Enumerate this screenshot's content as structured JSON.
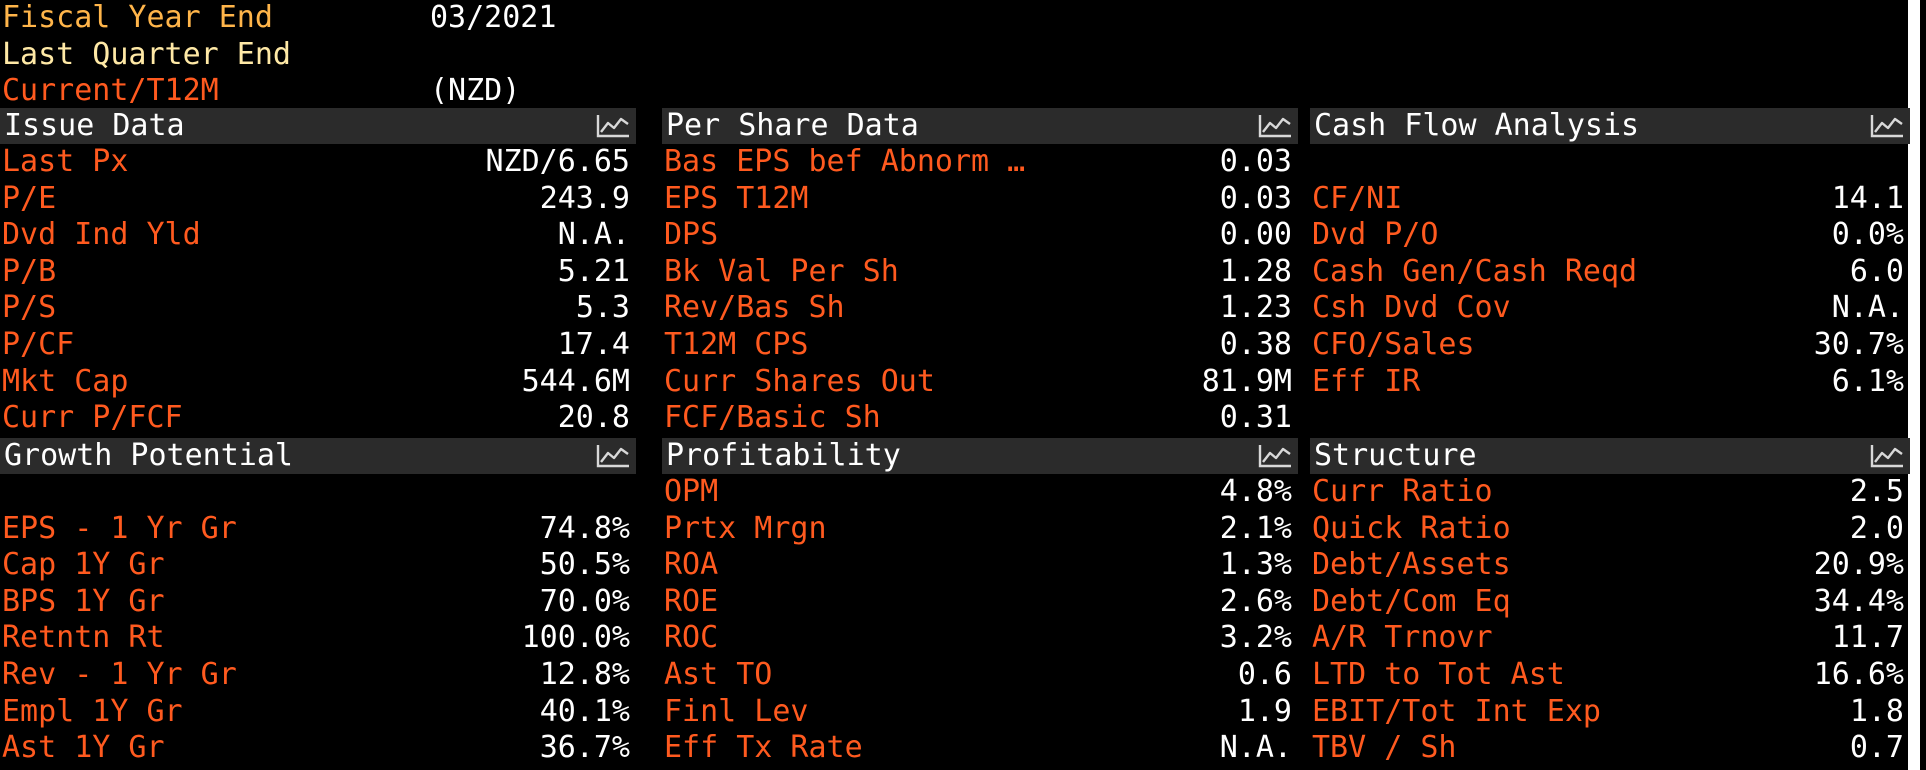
{
  "header": {
    "fiscal_year_end_label": "Fiscal Year End",
    "fiscal_year_end_value": "03/2021",
    "last_quarter_end_label": "Last Quarter End",
    "last_quarter_end_value": "",
    "current_label": "Current/T12M",
    "current_value": "(NZD)"
  },
  "panels": {
    "issue_data": {
      "title": "Issue Data",
      "rows": [
        {
          "label": "Last Px",
          "value": "NZD/6.65"
        },
        {
          "label": "P/E",
          "value": "243.9"
        },
        {
          "label": "Dvd Ind Yld",
          "value": "N.A."
        },
        {
          "label": "P/B",
          "value": "5.21"
        },
        {
          "label": "P/S",
          "value": "5.3"
        },
        {
          "label": "P/CF",
          "value": "17.4"
        },
        {
          "label": "Mkt Cap",
          "value": "544.6M"
        },
        {
          "label": "Curr P/FCF",
          "value": "20.8"
        }
      ]
    },
    "per_share_data": {
      "title": "Per Share Data",
      "rows": [
        {
          "label": "Bas EPS bef Abnorm …",
          "value": "0.03"
        },
        {
          "label": "EPS T12M",
          "value": "0.03"
        },
        {
          "label": "DPS",
          "value": "0.00"
        },
        {
          "label": "Bk Val Per Sh",
          "value": "1.28"
        },
        {
          "label": "Rev/Bas Sh",
          "value": "1.23"
        },
        {
          "label": "T12M CPS",
          "value": "0.38"
        },
        {
          "label": "Curr Shares Out",
          "value": "81.9M"
        },
        {
          "label": "FCF/Basic Sh",
          "value": "0.31"
        }
      ]
    },
    "cash_flow_analysis": {
      "title": "Cash Flow Analysis",
      "rows": [
        {
          "label": "",
          "value": ""
        },
        {
          "label": "CF/NI",
          "value": "14.1"
        },
        {
          "label": "Dvd P/O",
          "value": "0.0%"
        },
        {
          "label": "Cash Gen/Cash Reqd",
          "value": "6.0"
        },
        {
          "label": "Csh Dvd Cov",
          "value": "N.A."
        },
        {
          "label": "CFO/Sales",
          "value": "30.7%"
        },
        {
          "label": "Eff IR",
          "value": "6.1%"
        },
        {
          "label": "",
          "value": ""
        }
      ]
    },
    "growth_potential": {
      "title": "Growth Potential",
      "rows": [
        {
          "label": "",
          "value": ""
        },
        {
          "label": "EPS - 1 Yr Gr",
          "value": "74.8%"
        },
        {
          "label": "Cap 1Y Gr",
          "value": "50.5%"
        },
        {
          "label": "BPS 1Y Gr",
          "value": "70.0%"
        },
        {
          "label": "Retntn Rt",
          "value": "100.0%"
        },
        {
          "label": "Rev - 1 Yr Gr",
          "value": "12.8%"
        },
        {
          "label": "Empl 1Y Gr",
          "value": "40.1%"
        },
        {
          "label": "Ast 1Y Gr",
          "value": "36.7%"
        }
      ]
    },
    "profitability": {
      "title": "Profitability",
      "rows": [
        {
          "label": "OPM",
          "value": "4.8%"
        },
        {
          "label": "Prtx Mrgn",
          "value": "2.1%"
        },
        {
          "label": "ROA",
          "value": "1.3%"
        },
        {
          "label": "ROE",
          "value": "2.6%"
        },
        {
          "label": "ROC",
          "value": "3.2%"
        },
        {
          "label": "Ast TO",
          "value": "0.6"
        },
        {
          "label": "Finl Lev",
          "value": "1.9"
        },
        {
          "label": "Eff Tx Rate",
          "value": "N.A."
        }
      ]
    },
    "structure": {
      "title": "Structure",
      "rows": [
        {
          "label": "Curr Ratio",
          "value": "2.5"
        },
        {
          "label": "Quick Ratio",
          "value": "2.0"
        },
        {
          "label": "Debt/Assets",
          "value": "20.9%"
        },
        {
          "label": "Debt/Com Eq",
          "value": "34.4%"
        },
        {
          "label": "A/R Trnovr",
          "value": "11.7"
        },
        {
          "label": "LTD to Tot Ast",
          "value": "16.6%"
        },
        {
          "label": "EBIT/Tot Int Exp",
          "value": "1.8"
        },
        {
          "label": "TBV / Sh",
          "value": "0.7"
        }
      ]
    }
  },
  "icons": {
    "chart": "line-chart-icon"
  },
  "colors": {
    "background": "#000000",
    "label_orange": "#ff5a1f",
    "label_amber": "#ffb54a",
    "label_yellow": "#ffe9a6",
    "value_white": "#ffffff",
    "header_bg": "#2b2b2b"
  }
}
